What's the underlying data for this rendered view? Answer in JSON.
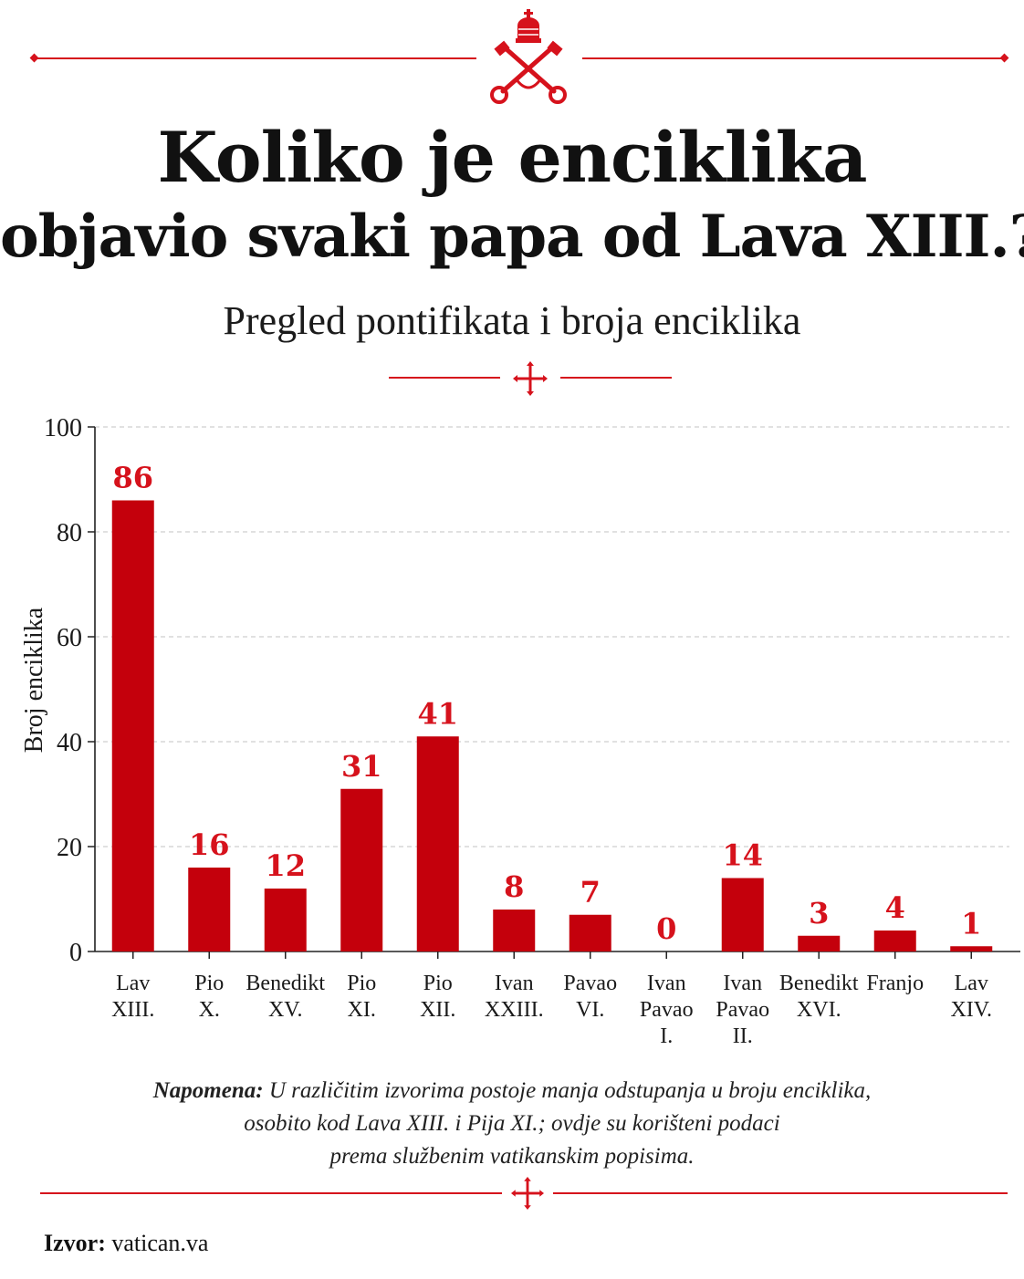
{
  "emblem": {
    "icon": "papal-keys-tiara-icon",
    "color": "#d6121c"
  },
  "title_line1": "Koliko je enciklika",
  "title_line2": "objavio svaki papa od Lava XIII.?",
  "subtitle": "Pregled pontifikata i broja enciklika",
  "accent_color": "#d6121c",
  "chart_data": {
    "type": "bar",
    "categories": [
      [
        "Lav",
        "XIII."
      ],
      [
        "Pio",
        "X."
      ],
      [
        "Benedikt",
        "XV."
      ],
      [
        "Pio",
        "XI."
      ],
      [
        "Pio",
        "XII."
      ],
      [
        "Ivan",
        "XXIII."
      ],
      [
        "Pavao",
        "VI."
      ],
      [
        "Ivan",
        "Pavao",
        "I."
      ],
      [
        "Ivan",
        "Pavao",
        "II."
      ],
      [
        "Benedikt",
        "XVI."
      ],
      [
        "Franjo"
      ],
      [
        "Lav",
        "XIV."
      ]
    ],
    "values": [
      86,
      16,
      12,
      31,
      41,
      8,
      7,
      0,
      14,
      3,
      4,
      1
    ],
    "data_labels": [
      "86",
      "16",
      "12",
      "31",
      "41",
      "8",
      "7",
      "0",
      "14",
      "3",
      "4",
      "1"
    ],
    "ylabel": "Broj enciklika",
    "xlabel": "",
    "ylim": [
      0,
      100
    ],
    "yticks": [
      0,
      20,
      40,
      60,
      80,
      100
    ],
    "grid": true,
    "bar_color": "#c4000c",
    "label_color": "#d6121c"
  },
  "note": {
    "label": "Napomena:",
    "line1": "U različitim izvorima postoje manja odstupanja u broju enciklika,",
    "line2": "osobito kod Lava XIII. i Pija XI.; ovdje su korišteni podaci",
    "line3": "prema službenim vatikanskim popisima."
  },
  "source": {
    "label": "Izvor:",
    "value": "vatican.va"
  }
}
